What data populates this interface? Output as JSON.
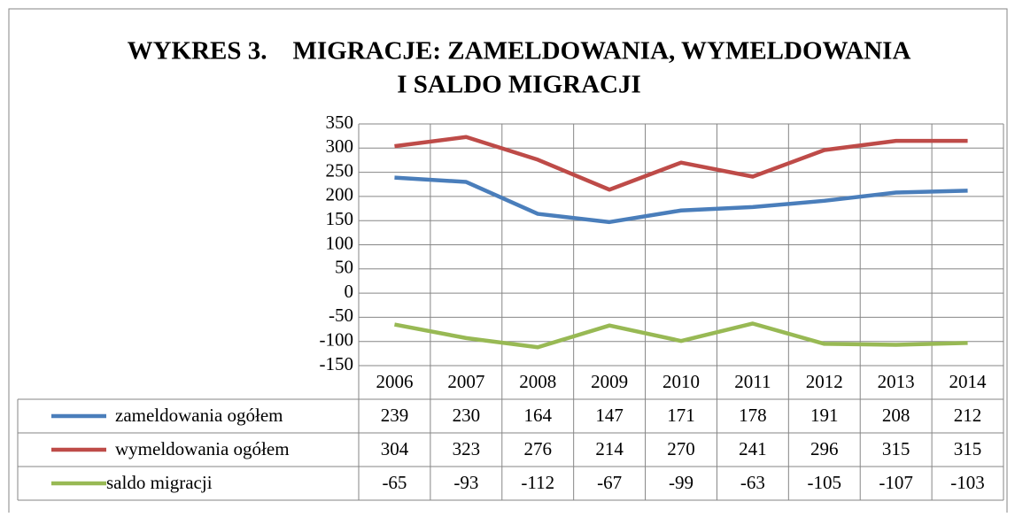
{
  "chart_data": {
    "type": "line",
    "title_lines": [
      "WYKRES 3.    MIGRACJE: ZAMELDOWANIA, WYMELDOWANIA",
      "I SALDO MIGRACJI"
    ],
    "categories": [
      "2006",
      "2007",
      "2008",
      "2009",
      "2010",
      "2011",
      "2012",
      "2013",
      "2014"
    ],
    "series": [
      {
        "name": "zameldowania ogółem",
        "color": "#4a7ebb",
        "values": [
          239,
          230,
          164,
          147,
          171,
          178,
          191,
          208,
          212
        ]
      },
      {
        "name": "wymeldowania ogółem",
        "color": "#be4b48",
        "values": [
          304,
          323,
          276,
          214,
          270,
          241,
          296,
          315,
          315
        ]
      },
      {
        "name": "saldo migracji",
        "color": "#98b954",
        "values": [
          -65,
          -93,
          -112,
          -67,
          -99,
          -63,
          -105,
          -107,
          -103
        ]
      }
    ],
    "ylim": [
      -150,
      350
    ],
    "yticks": [
      -150,
      -100,
      -50,
      0,
      50,
      100,
      150,
      200,
      250,
      300,
      350
    ],
    "grid": true,
    "data_table": true
  }
}
